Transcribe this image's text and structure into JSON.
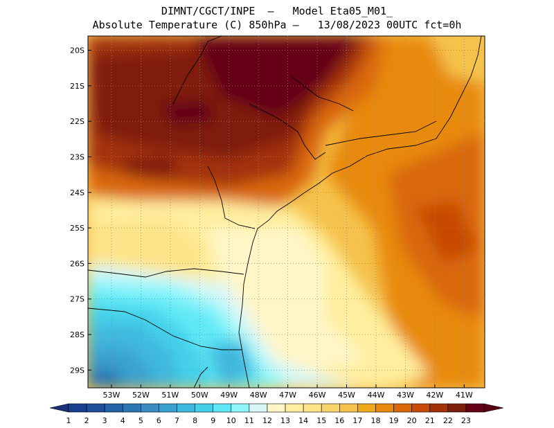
{
  "header": {
    "line1": "DIMNT/CGCT/INPE  –   Model Eta05_M01_",
    "line2": "Absolute Temperature (C) 850hPa –   13/08/2023 00UTC fct=0h"
  },
  "map": {
    "lat_labels": [
      "20S",
      "21S",
      "22S",
      "23S",
      "24S",
      "25S",
      "26S",
      "27S",
      "28S",
      "29S"
    ],
    "lon_labels": [
      "53W",
      "52W",
      "51W",
      "50W",
      "49W",
      "48W",
      "47W",
      "46W",
      "45W",
      "44W",
      "43W",
      "42W",
      "41W"
    ],
    "lat_range": [
      -29.5,
      -19.6
    ],
    "lon_range": [
      -53.8,
      -40.3
    ],
    "grid": "dotted"
  },
  "colorbar": {
    "labels": [
      "1",
      "2",
      "3",
      "4",
      "5",
      "6",
      "7",
      "8",
      "9",
      "10",
      "11",
      "12",
      "13",
      "14",
      "15",
      "16",
      "17",
      "18",
      "19",
      "20",
      "21",
      "22",
      "23"
    ],
    "colors": [
      "#1b3f8f",
      "#1f4e9a",
      "#2462a6",
      "#2a77b4",
      "#3a8cc2",
      "#3aa0cf",
      "#3fb8de",
      "#45d0ea",
      "#5ee8f5",
      "#8ef5fb",
      "#d8f7f7",
      "#fff6c8",
      "#ffee9e",
      "#fde48a",
      "#f8d46c",
      "#f5c24c",
      "#f0a81c",
      "#e88a0e",
      "#d96808",
      "#c74a06",
      "#a3320a",
      "#7f1f10",
      "#650018"
    ],
    "end_colors": [
      "#1a2f7a",
      "#5a0014"
    ]
  }
}
